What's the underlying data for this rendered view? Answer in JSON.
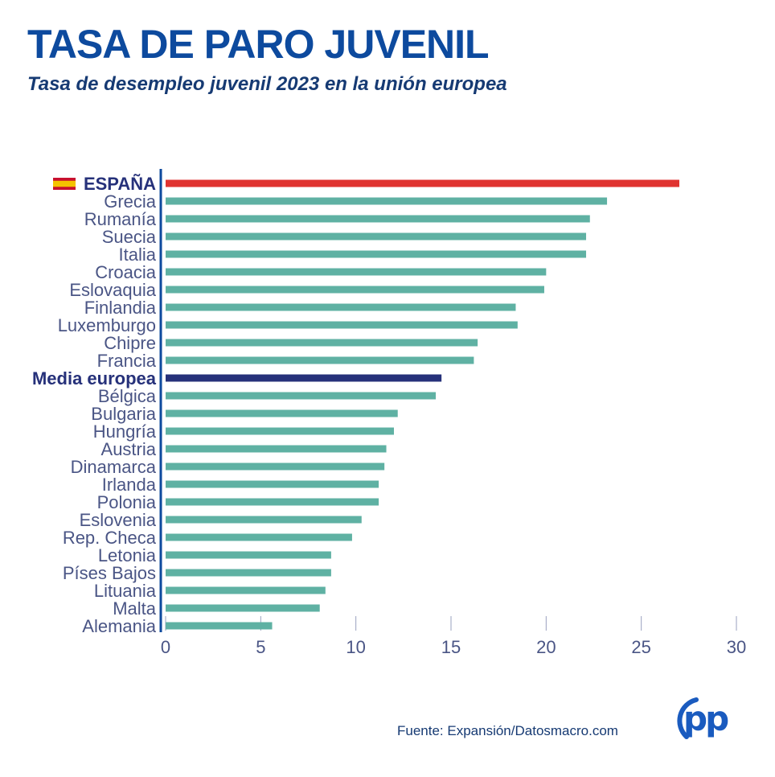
{
  "header": {
    "title": "TASA DE PARO JUVENIL",
    "subtitle": "Tasa de desempleo juvenil 2023 en la unión europea"
  },
  "source": "Fuente: Expansión/Datosmacro.com",
  "logo": {
    "text": "pp",
    "color": "#1a5bbf"
  },
  "colors": {
    "highlight": "#e03330",
    "average": "#26317a",
    "default": "#5fb1a3",
    "axis": "#0d4a9e",
    "label": "#4a5585",
    "tick": "#4a5585",
    "flag_red": "#c8102e",
    "flag_yellow": "#f4c300"
  },
  "chart_data": {
    "type": "bar",
    "orientation": "horizontal",
    "title": "TASA DE PARO JUVENIL",
    "subtitle": "Tasa de desempleo juvenil 2023 en la unión europea",
    "xlabel": "",
    "ylabel": "",
    "xlim": [
      0,
      30
    ],
    "xticks": [
      0,
      5,
      10,
      15,
      20,
      25,
      30
    ],
    "grid": false,
    "categories": [
      "ESPAÑA",
      "Grecia",
      "Rumanía",
      "Suecia",
      "Italia",
      "Croacia",
      "Eslovaquia",
      "Finlandia",
      "Luxemburgo",
      "Chipre",
      "Francia",
      "Media europea",
      "Bélgica",
      "Bulgaria",
      "Hungría",
      "Austria",
      "Dinamarca",
      "Irlanda",
      "Polonia",
      "Eslovenia",
      "Rep. Checa",
      "Letonia",
      "Píses Bajos",
      "Lituania",
      "Malta",
      "Alemania"
    ],
    "values": [
      27.0,
      23.2,
      22.3,
      22.1,
      22.1,
      20.0,
      19.9,
      18.4,
      18.5,
      16.4,
      16.2,
      14.5,
      14.2,
      12.2,
      12.0,
      11.6,
      11.5,
      11.2,
      11.2,
      10.3,
      9.8,
      8.7,
      8.7,
      8.4,
      8.1,
      5.6
    ],
    "highlight": "ESPAÑA",
    "average": "Media europea"
  }
}
